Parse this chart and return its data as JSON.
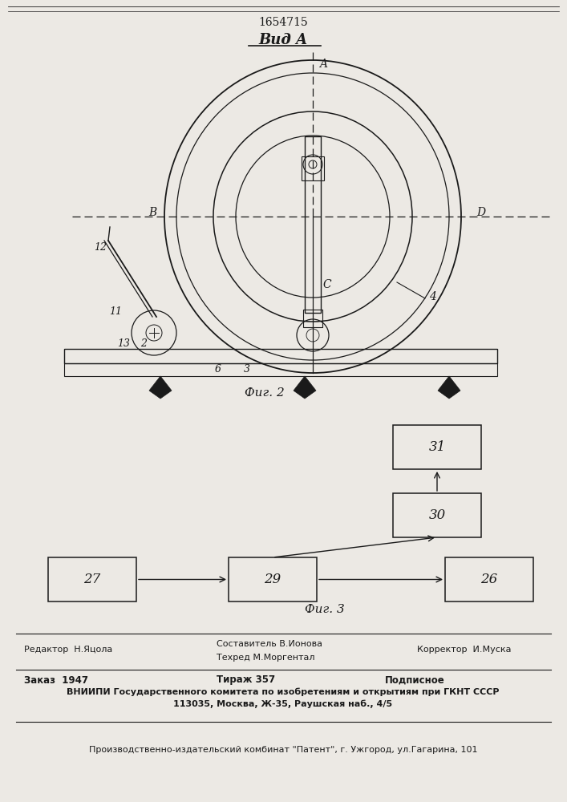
{
  "patent_number": "1654715",
  "view_label": "Вид A",
  "fig2_label": "Фиг. 2",
  "fig3_label": "Фиг. 3",
  "bg_color": "#ece9e4",
  "line_color": "#1a1a1a",
  "footer_line1_left": "Редактор  Н.Яцола",
  "footer_line1_center1": "Составитель В.Ионова",
  "footer_line1_center2": "Техред М.Моргентал",
  "footer_line1_right": "Корректор  И.Муска",
  "footer_line2_col1": "Заказ  1947",
  "footer_line2_col2": "Тираж 357",
  "footer_line2_col3": "Подписное",
  "footer_line3": "ВНИИПИ Государственного комитета по изобретениям и открытиям при ГКНТ СССР",
  "footer_line4": "113035, Москва, Ж-35, Раушская наб., 4/5",
  "footer_line5": "Производственно-издательский комбинат \"Патент\", г. Ужгород, ул.Гагарина, 101"
}
